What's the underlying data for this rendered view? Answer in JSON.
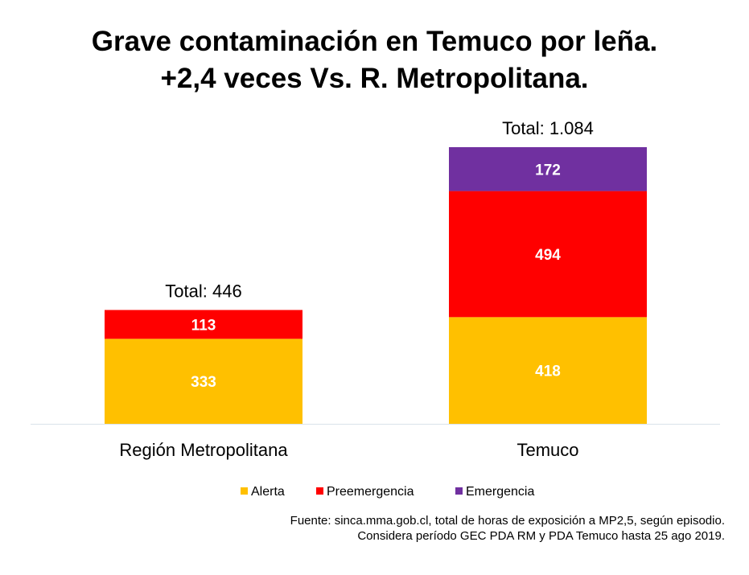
{
  "title_line1": "Grave contaminación en Temuco por leña.",
  "title_line2": "+2,4 veces Vs. R. Metropolitana.",
  "source_line1": "Fuente: sinca.mma.gob.cl, total de horas de exposición a MP2,5, según episodio.",
  "source_line2": "Considera período GEC PDA RM y PDA Temuco hasta 25 ago 2019.",
  "chart_data": {
    "type": "bar",
    "stacked": true,
    "categories": [
      "Región Metropolitana",
      "Temuco"
    ],
    "series": [
      {
        "name": "Alerta",
        "color": "#FFC000",
        "values": [
          333,
          418
        ]
      },
      {
        "name": "Preemergencia",
        "color": "#FF0000",
        "values": [
          113,
          494
        ]
      },
      {
        "name": "Emergencia",
        "color": "#7030A0",
        "values": [
          0,
          172
        ]
      }
    ],
    "totals": [
      "Total: 446",
      "Total: 1.084"
    ],
    "value_labels": [
      [
        "333",
        "418"
      ],
      [
        "113",
        "494"
      ],
      [
        "",
        "172"
      ]
    ],
    "ylim": [
      0,
      1084
    ],
    "grid": false,
    "legend_position": "bottom"
  }
}
